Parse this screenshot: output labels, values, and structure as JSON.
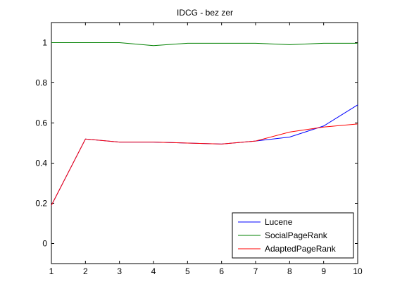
{
  "chart_data": {
    "type": "line",
    "title": "IDCG - bez zer",
    "xlabel": "",
    "ylabel": "",
    "xlim": [
      1,
      10
    ],
    "ylim": [
      -0.1,
      1.1
    ],
    "x_ticks": [
      1,
      2,
      3,
      4,
      5,
      6,
      7,
      8,
      9,
      10
    ],
    "y_ticks": [
      0,
      0.2,
      0.4,
      0.6,
      0.8,
      1
    ],
    "x_tick_labels": [
      "1",
      "2",
      "3",
      "4",
      "5",
      "6",
      "7",
      "8",
      "9",
      "10"
    ],
    "y_tick_labels": [
      "0",
      "0.2",
      "0.4",
      "0.6",
      "0.8",
      "1"
    ],
    "grid": false,
    "legend_position": "bottom-right",
    "x": [
      1,
      2,
      3,
      4,
      5,
      6,
      7,
      8,
      9,
      10
    ],
    "series": [
      {
        "name": "Lucene",
        "color": "#0000ff",
        "values": [
          0.19,
          0.52,
          0.505,
          0.505,
          0.5,
          0.495,
          0.51,
          0.53,
          0.585,
          0.69
        ]
      },
      {
        "name": "SocialPageRank",
        "color": "#008000",
        "values": [
          1.0,
          1.0,
          1.0,
          0.985,
          0.997,
          0.997,
          0.997,
          0.99,
          0.997,
          0.997
        ]
      },
      {
        "name": "AdaptedPageRank",
        "color": "#ff0000",
        "values": [
          0.19,
          0.52,
          0.505,
          0.505,
          0.5,
          0.495,
          0.51,
          0.555,
          0.58,
          0.595
        ]
      }
    ]
  }
}
